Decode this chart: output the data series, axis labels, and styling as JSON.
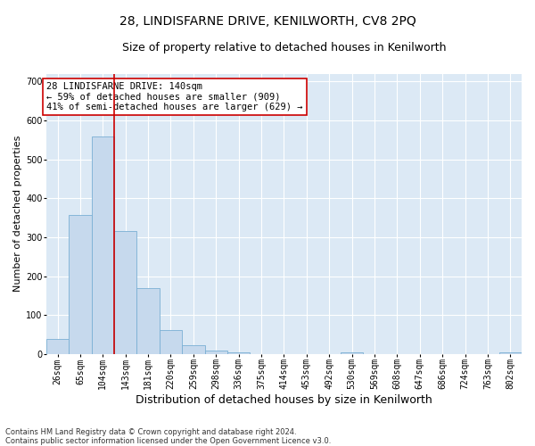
{
  "title": "28, LINDISFARNE DRIVE, KENILWORTH, CV8 2PQ",
  "subtitle": "Size of property relative to detached houses in Kenilworth",
  "xlabel": "Distribution of detached houses by size in Kenilworth",
  "ylabel": "Number of detached properties",
  "categories": [
    "26sqm",
    "65sqm",
    "104sqm",
    "143sqm",
    "181sqm",
    "220sqm",
    "259sqm",
    "298sqm",
    "336sqm",
    "375sqm",
    "414sqm",
    "453sqm",
    "492sqm",
    "530sqm",
    "569sqm",
    "608sqm",
    "647sqm",
    "686sqm",
    "724sqm",
    "763sqm",
    "802sqm"
  ],
  "values": [
    40,
    358,
    558,
    315,
    170,
    62,
    22,
    10,
    5,
    0,
    0,
    0,
    0,
    5,
    0,
    0,
    0,
    0,
    0,
    0,
    5
  ],
  "bar_color": "#c6d9ed",
  "bar_edge_color": "#7aafd4",
  "vline_color": "#cc0000",
  "annotation_text": "28 LINDISFARNE DRIVE: 140sqm\n← 59% of detached houses are smaller (909)\n41% of semi-detached houses are larger (629) →",
  "annotation_box_color": "#ffffff",
  "annotation_box_edge": "#cc0000",
  "footer_line1": "Contains HM Land Registry data © Crown copyright and database right 2024.",
  "footer_line2": "Contains public sector information licensed under the Open Government Licence v3.0.",
  "ylim": [
    0,
    720
  ],
  "yticks": [
    0,
    100,
    200,
    300,
    400,
    500,
    600,
    700
  ],
  "background_color": "#dce9f5",
  "grid_color": "#ffffff",
  "fig_background": "#ffffff",
  "title_fontsize": 10,
  "subtitle_fontsize": 9,
  "xlabel_fontsize": 9,
  "ylabel_fontsize": 8,
  "tick_fontsize": 7,
  "annotation_fontsize": 7.5,
  "footer_fontsize": 6
}
